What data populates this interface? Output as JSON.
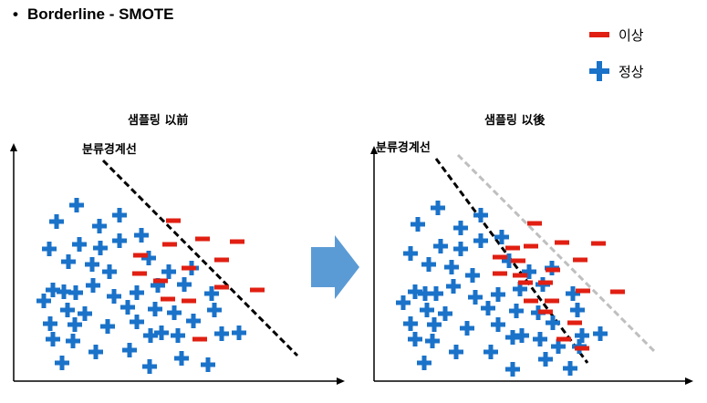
{
  "title": {
    "bullet": "•",
    "text": "Borderline - SMOTE"
  },
  "legend": {
    "minority_label": "이상",
    "majority_label": "정상"
  },
  "colors": {
    "majority": "#1a72c9",
    "minority": "#e11f12",
    "arrow": "#5b9bd5",
    "boundary": "#000000",
    "shifted_boundary": "#bfbfbf"
  },
  "panels": [
    {
      "title": "샘플링 以前",
      "boundary_label": "분류경계선"
    },
    {
      "title": "샘플링 以後",
      "boundary_label": "분류경계선"
    }
  ]
}
